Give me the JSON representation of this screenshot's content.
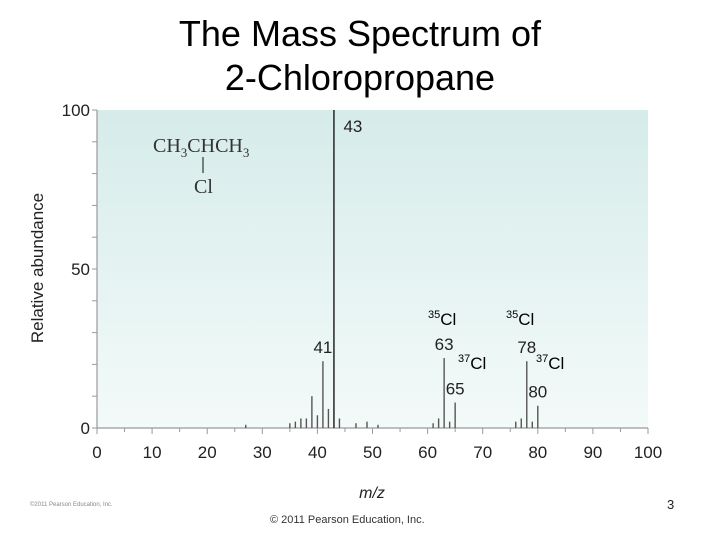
{
  "slide": {
    "title_line1": "The Mass Spectrum of",
    "title_line2": "2-Chloropropane",
    "copyright": "© 2011 Pearson Education, Inc.",
    "page_number": "3",
    "small_credit": "©2011 Pearson Education, Inc."
  },
  "chart_data": {
    "type": "bar",
    "title": "",
    "xlabel": "m/z",
    "ylabel": "Relative abundance",
    "xlim": [
      0,
      100
    ],
    "ylim": [
      0,
      100
    ],
    "x_ticks": [
      0,
      10,
      20,
      30,
      40,
      50,
      60,
      70,
      80,
      90,
      100
    ],
    "y_ticks": [
      0,
      50,
      100
    ],
    "grid": false,
    "colors": {
      "plot_bg_top": "#d6ecea",
      "plot_bg_bottom": "#f3faf9",
      "axis": "#9a9a9a",
      "text": "#222222",
      "isotope_label": "#cc0000",
      "peak": "#555555",
      "base_peak": "#333333"
    },
    "peaks": [
      {
        "x": 27,
        "y": 1
      },
      {
        "x": 35,
        "y": 1.5
      },
      {
        "x": 36,
        "y": 2
      },
      {
        "x": 37,
        "y": 3
      },
      {
        "x": 38,
        "y": 3
      },
      {
        "x": 39,
        "y": 10
      },
      {
        "x": 40,
        "y": 4
      },
      {
        "x": 41,
        "y": 21
      },
      {
        "x": 42,
        "y": 6
      },
      {
        "x": 43,
        "y": 100
      },
      {
        "x": 44,
        "y": 3
      },
      {
        "x": 47,
        "y": 1.5
      },
      {
        "x": 49,
        "y": 2
      },
      {
        "x": 51,
        "y": 1
      },
      {
        "x": 61,
        "y": 1.5
      },
      {
        "x": 62,
        "y": 3
      },
      {
        "x": 63,
        "y": 22
      },
      {
        "x": 64,
        "y": 2
      },
      {
        "x": 65,
        "y": 8
      },
      {
        "x": 76,
        "y": 2
      },
      {
        "x": 77,
        "y": 3
      },
      {
        "x": 78,
        "y": 21
      },
      {
        "x": 79,
        "y": 2
      },
      {
        "x": 80,
        "y": 7
      }
    ],
    "peak_labels": [
      {
        "x": 43,
        "text": "43"
      },
      {
        "x": 41,
        "text": "41"
      },
      {
        "x": 63,
        "text": "63"
      },
      {
        "x": 65,
        "text": "65"
      },
      {
        "x": 78,
        "text": "78"
      },
      {
        "x": 80,
        "text": "80"
      }
    ],
    "structure": {
      "line1": "CH3CHCH3",
      "line2": "Cl"
    },
    "isotope_labels": [
      {
        "mass": "35",
        "symbol": "Cl"
      },
      {
        "mass": "35",
        "symbol": "Cl"
      },
      {
        "mass": "37",
        "symbol": "Cl"
      },
      {
        "mass": "37",
        "symbol": "Cl"
      }
    ]
  }
}
